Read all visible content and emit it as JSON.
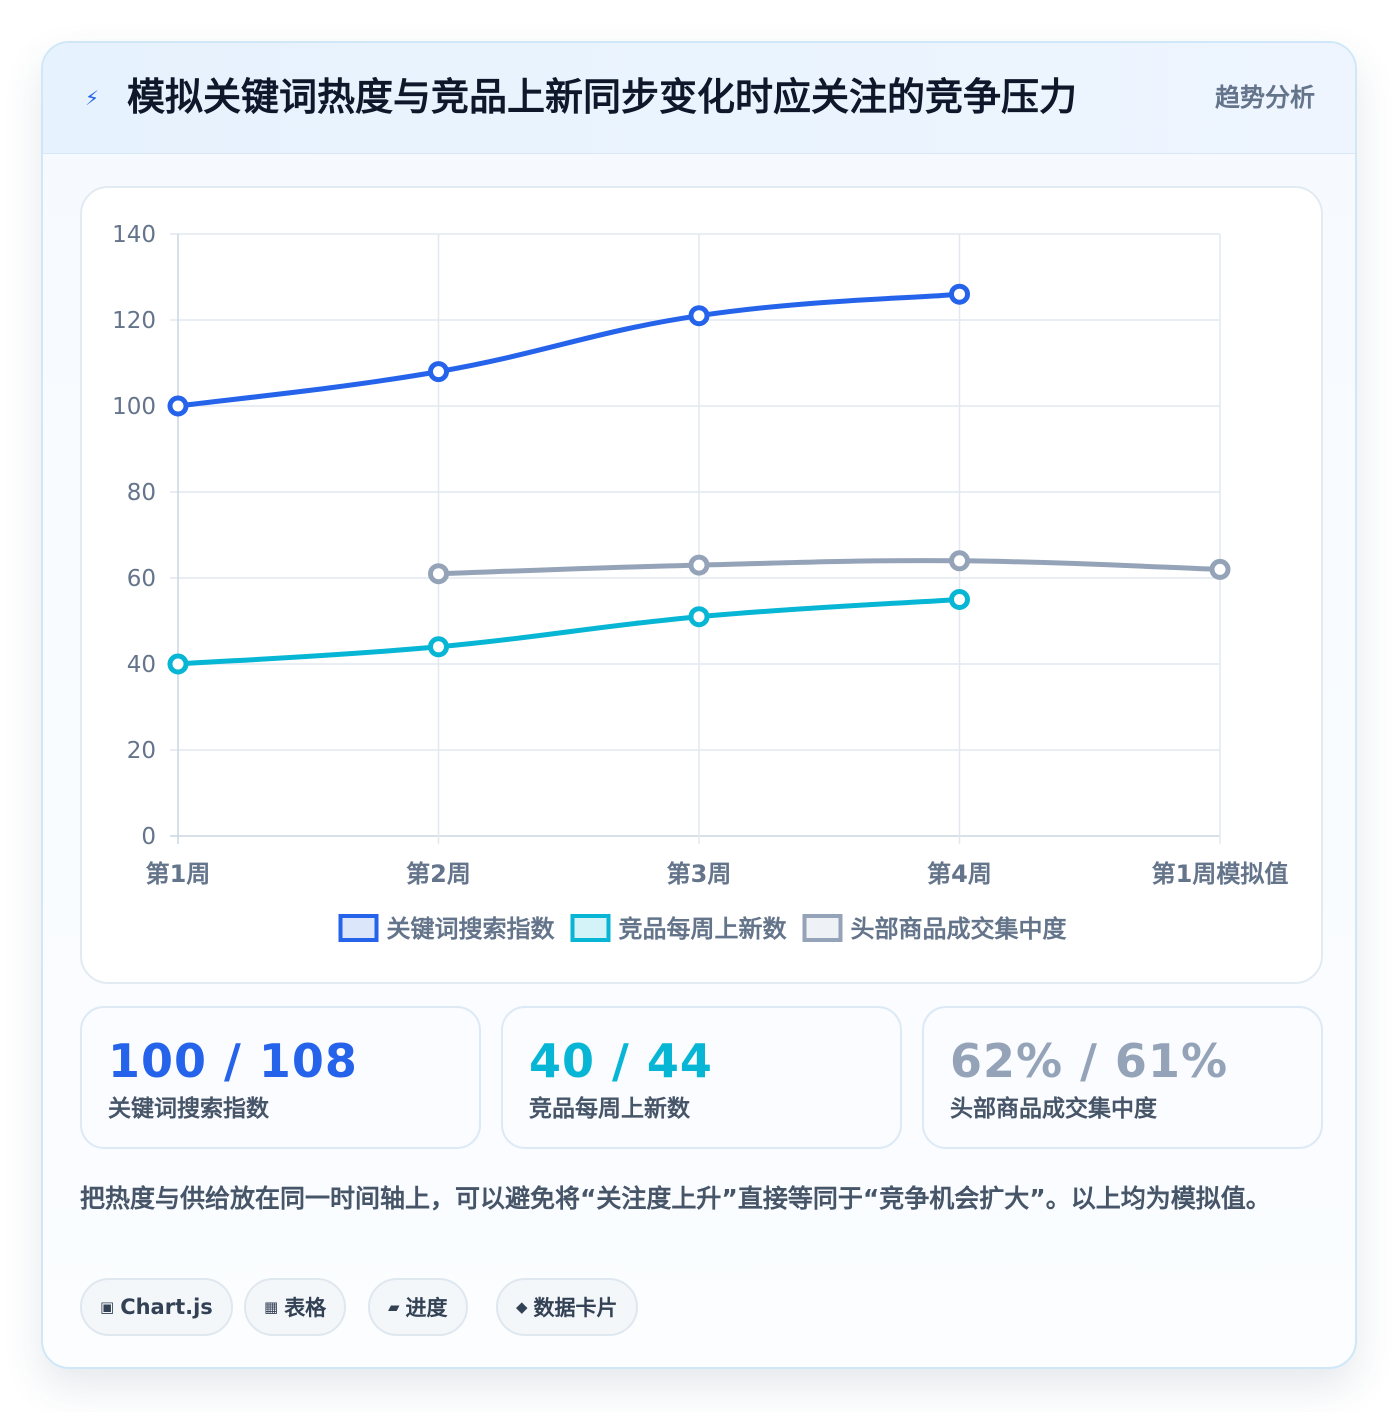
{
  "header": {
    "icon": "lightning-icon",
    "title": "模拟关键词热度与竞品上新同步变化时应关注的竞争压力",
    "tag": "趋势分析"
  },
  "chart_data": {
    "type": "line",
    "categories": [
      "第1周",
      "第2周",
      "第3周",
      "第4周",
      "第1周模拟值"
    ],
    "ylim": [
      0,
      140
    ],
    "yticks": [
      0,
      20,
      40,
      60,
      80,
      100,
      120,
      140
    ],
    "grid": true,
    "legend_position": "bottom",
    "series": [
      {
        "name": "关键词搜索指数",
        "color": "#2563eb",
        "fill": "#dbe6fb",
        "values": [
          100,
          108,
          121,
          126,
          null
        ]
      },
      {
        "name": "竞品每周上新数",
        "color": "#06b6d4",
        "fill": "#d3f3f8",
        "values": [
          40,
          44,
          51,
          55,
          null
        ]
      },
      {
        "name": "头部商品成交集中度",
        "color": "#94a3b8",
        "fill": "#eef1f6",
        "values": [
          null,
          61,
          63,
          64,
          62
        ]
      }
    ]
  },
  "stats": [
    {
      "value": "100 / 108",
      "label": "关键词搜索指数",
      "color": "#2563eb"
    },
    {
      "value": "40 / 44",
      "label": "竞品每周上新数",
      "color": "#06b6d4"
    },
    {
      "value": "62% / 61%",
      "label": "头部商品成交集中度",
      "color": "#94a3b8"
    }
  ],
  "note": "把热度与供给放在同一时间轴上，可以避免将“关注度上升”直接等同于“竞争机会扩大”。以上均为模拟值。",
  "chips": [
    {
      "icon": "▣",
      "label": "Chart.js"
    },
    {
      "icon": "▦",
      "label": "表格"
    },
    {
      "icon": "▰",
      "label": "进度"
    },
    {
      "icon": "◆",
      "label": "数据卡片"
    }
  ]
}
